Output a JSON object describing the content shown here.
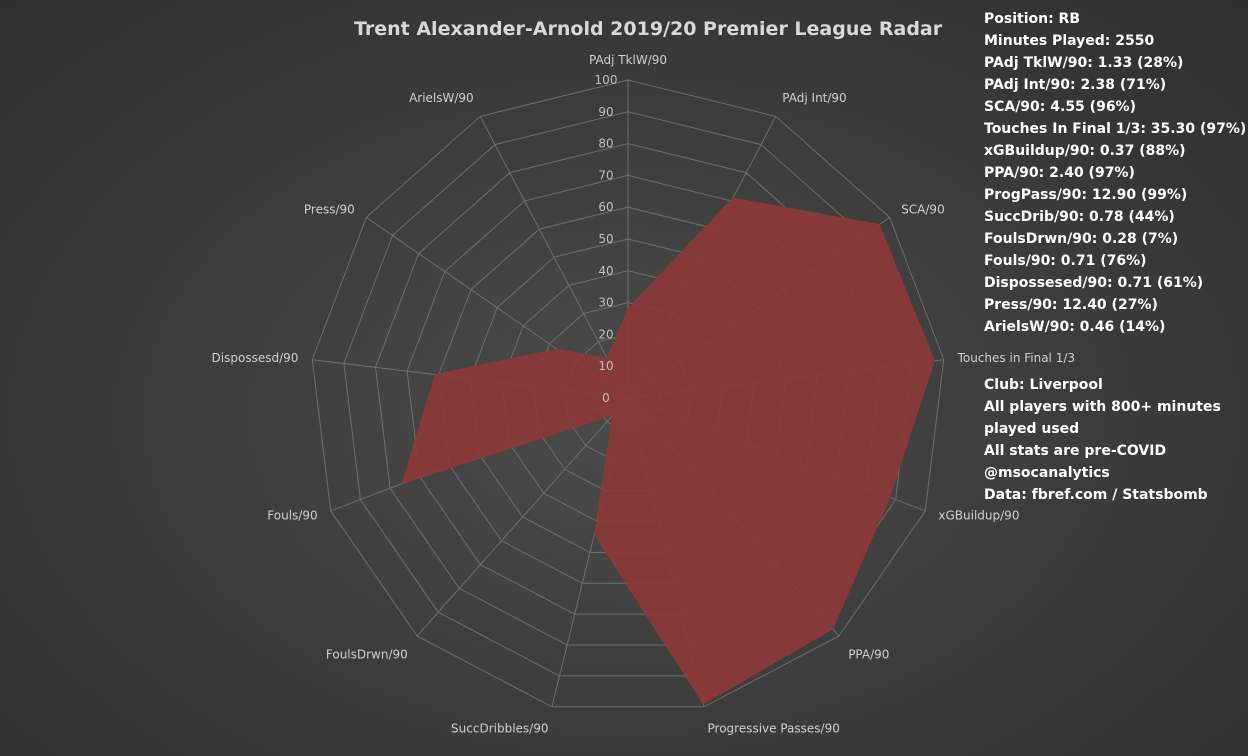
{
  "chart_data": {
    "type": "radar",
    "title": "Trent Alexander-Arnold 2019/20 Premier League Radar",
    "categories": [
      "PAdj TklW/90",
      "PAdj Int/90",
      "SCA/90",
      "Touches in Final 1/3",
      "xGBuildup/90",
      "PPA/90",
      "Progressive Passes/90",
      "SuccDribbles/90",
      "FoulsDrwn/90",
      "Fouls/90",
      "Dispossesd/90",
      "Press/90",
      "ArielsW/90"
    ],
    "series": [
      {
        "values": [
          28,
          71,
          96,
          97,
          88,
          97,
          99,
          44,
          7,
          76,
          61,
          27,
          14
        ]
      }
    ],
    "rlim": [
      0,
      100
    ],
    "ticks": [
      "0",
      "10",
      "20",
      "30",
      "40",
      "50",
      "60",
      "70",
      "80",
      "90",
      "100"
    ],
    "fill_color": "#8b3a38",
    "grid_color": "#6e6e6e",
    "grid": true
  },
  "stats": [
    "Position: RB",
    "Minutes Played: 2550",
    "PAdj TklW/90: 1.33 (28%)",
    "PAdj Int/90: 2.38 (71%)",
    "SCA/90: 4.55 (96%)",
    "Touches In Final 1/3: 35.30 (97%)",
    "xGBuildup/90: 0.37 (88%)",
    "PPA/90: 2.40 (97%)",
    "ProgPass/90: 12.90 (99%)",
    "SuccDrib/90: 0.78 (44%)",
    "FoulsDrwn/90: 0.28 (7%)",
    "Fouls/90: 0.71 (76%)",
    "Dispossesed/90: 0.71 (61%)",
    "Press/90: 12.40 (27%)",
    "ArielsW/90: 0.46 (14%)"
  ],
  "info": [
    "Club: Liverpool",
    "All players with 800+ minutes played used",
    "All stats are pre-COVID",
    "@msocanalytics",
    "Data: fbref.com / Statsbomb"
  ]
}
